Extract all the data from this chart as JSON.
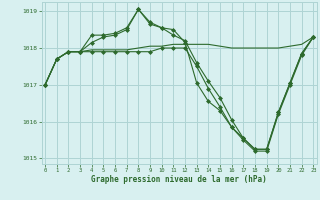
{
  "x": [
    0,
    1,
    2,
    3,
    4,
    5,
    6,
    7,
    8,
    9,
    10,
    11,
    12,
    13,
    14,
    15,
    16,
    17,
    18,
    19,
    20,
    21,
    22,
    23
  ],
  "line1": [
    1017.0,
    1017.7,
    1017.9,
    1017.9,
    1018.35,
    1018.35,
    1018.4,
    1018.55,
    1019.05,
    1018.65,
    1018.55,
    1018.5,
    1018.15,
    1017.05,
    1016.55,
    1016.3,
    1015.85,
    1015.55,
    1015.25,
    1015.25,
    1016.25,
    1017.05,
    1017.85,
    1018.3
  ],
  "line2": [
    1017.0,
    1017.7,
    1017.9,
    1017.9,
    1018.15,
    1018.3,
    1018.35,
    1018.5,
    1019.05,
    1018.7,
    1018.55,
    1018.35,
    1018.2,
    1017.6,
    1017.1,
    1016.65,
    1016.05,
    1015.55,
    1015.25,
    1015.25,
    1016.25,
    1017.05,
    1017.85,
    1018.3
  ],
  "line3": [
    1017.0,
    1017.7,
    1017.9,
    1017.9,
    1017.95,
    1017.95,
    1017.95,
    1017.95,
    1018.0,
    1018.05,
    1018.05,
    1018.1,
    1018.1,
    1018.1,
    1018.1,
    1018.05,
    1018.0,
    1018.0,
    1018.0,
    1018.0,
    1018.0,
    1018.05,
    1018.1,
    1018.3
  ],
  "line4": [
    1017.0,
    1017.7,
    1017.9,
    1017.9,
    1017.9,
    1017.9,
    1017.9,
    1017.9,
    1017.9,
    1017.9,
    1018.0,
    1018.0,
    1018.0,
    1017.5,
    1016.9,
    1016.4,
    1015.85,
    1015.5,
    1015.2,
    1015.2,
    1016.2,
    1017.0,
    1017.8,
    1018.3
  ],
  "line_color": "#2d6a2d",
  "bg_color": "#d8f0f0",
  "grid_color": "#aed4d4",
  "xlabel": "Graphe pression niveau de la mer (hPa)",
  "ylim": [
    1014.85,
    1019.25
  ],
  "yticks": [
    1015,
    1016,
    1017,
    1018,
    1019
  ],
  "xticks": [
    0,
    1,
    2,
    3,
    4,
    5,
    6,
    7,
    8,
    9,
    10,
    11,
    12,
    13,
    14,
    15,
    16,
    17,
    18,
    19,
    20,
    21,
    22,
    23
  ]
}
